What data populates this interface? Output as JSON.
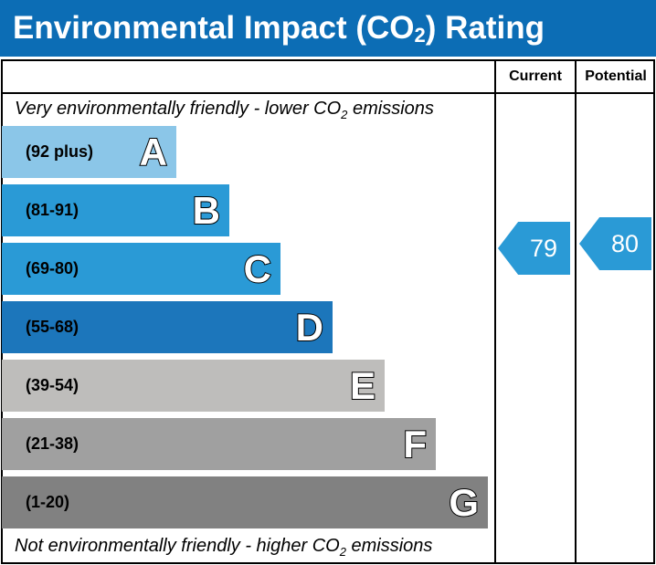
{
  "title": {
    "main": "Environmental Impact (CO",
    "sub": "2",
    "end": ") Rating"
  },
  "headers": {
    "current": "Current",
    "potential": "Potential"
  },
  "top_note": {
    "a": "Very environmentally friendly - lower CO",
    "sub": "2",
    "b": " emissions"
  },
  "bottom_note": {
    "a": "Not environmentally friendly - higher CO",
    "sub": "2",
    "b": " emissions"
  },
  "chart_data": {
    "type": "bar",
    "bands": [
      {
        "letter": "A",
        "range": "(92 plus)",
        "color": "#8BC6E8"
      },
      {
        "letter": "B",
        "range": "(81-91)",
        "color": "#2A9AD6"
      },
      {
        "letter": "C",
        "range": "(69-80)",
        "color": "#2A9AD6"
      },
      {
        "letter": "D",
        "range": "(55-68)",
        "color": "#1C76BB"
      },
      {
        "letter": "E",
        "range": "(39-54)",
        "color": "#BEBDBB"
      },
      {
        "letter": "F",
        "range": "(21-38)",
        "color": "#A0A0A0"
      },
      {
        "letter": "G",
        "range": "(1-20)",
        "color": "#818181"
      }
    ],
    "current": {
      "value": "79",
      "band": "C",
      "color": "#2A9AD6"
    },
    "potential": {
      "value": "80",
      "band": "C",
      "color": "#2A9AD6"
    }
  }
}
